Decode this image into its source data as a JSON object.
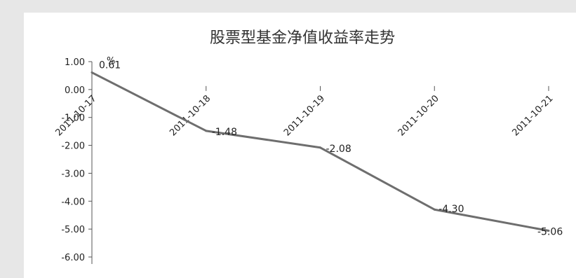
{
  "chart_data": {
    "type": "line",
    "title": "股票型基金净值收益率走势",
    "unit": "%",
    "categories": [
      "2011-10-17",
      "2011-10-18",
      "2011-10-19",
      "2011-10-20",
      "2011-10-21"
    ],
    "values": [
      0.61,
      -1.48,
      -2.08,
      -4.3,
      -5.06
    ],
    "data_labels": [
      "0.61",
      "-1.48",
      "-2.08",
      "-4.30",
      "-5.06"
    ],
    "y_ticks": [
      1.0,
      0.0,
      -1.0,
      -2.0,
      -3.0,
      -4.0,
      -5.0,
      -6.0
    ],
    "y_tick_labels": [
      "1.00",
      "0.00",
      "-1.00",
      "-2.00",
      "-3.00",
      "-4.00",
      "-5.00",
      "-6.00"
    ],
    "ylim": [
      -6.0,
      1.0
    ],
    "xlabel": "",
    "ylabel": "",
    "grid": false,
    "line_color": "#6e6e6e"
  }
}
